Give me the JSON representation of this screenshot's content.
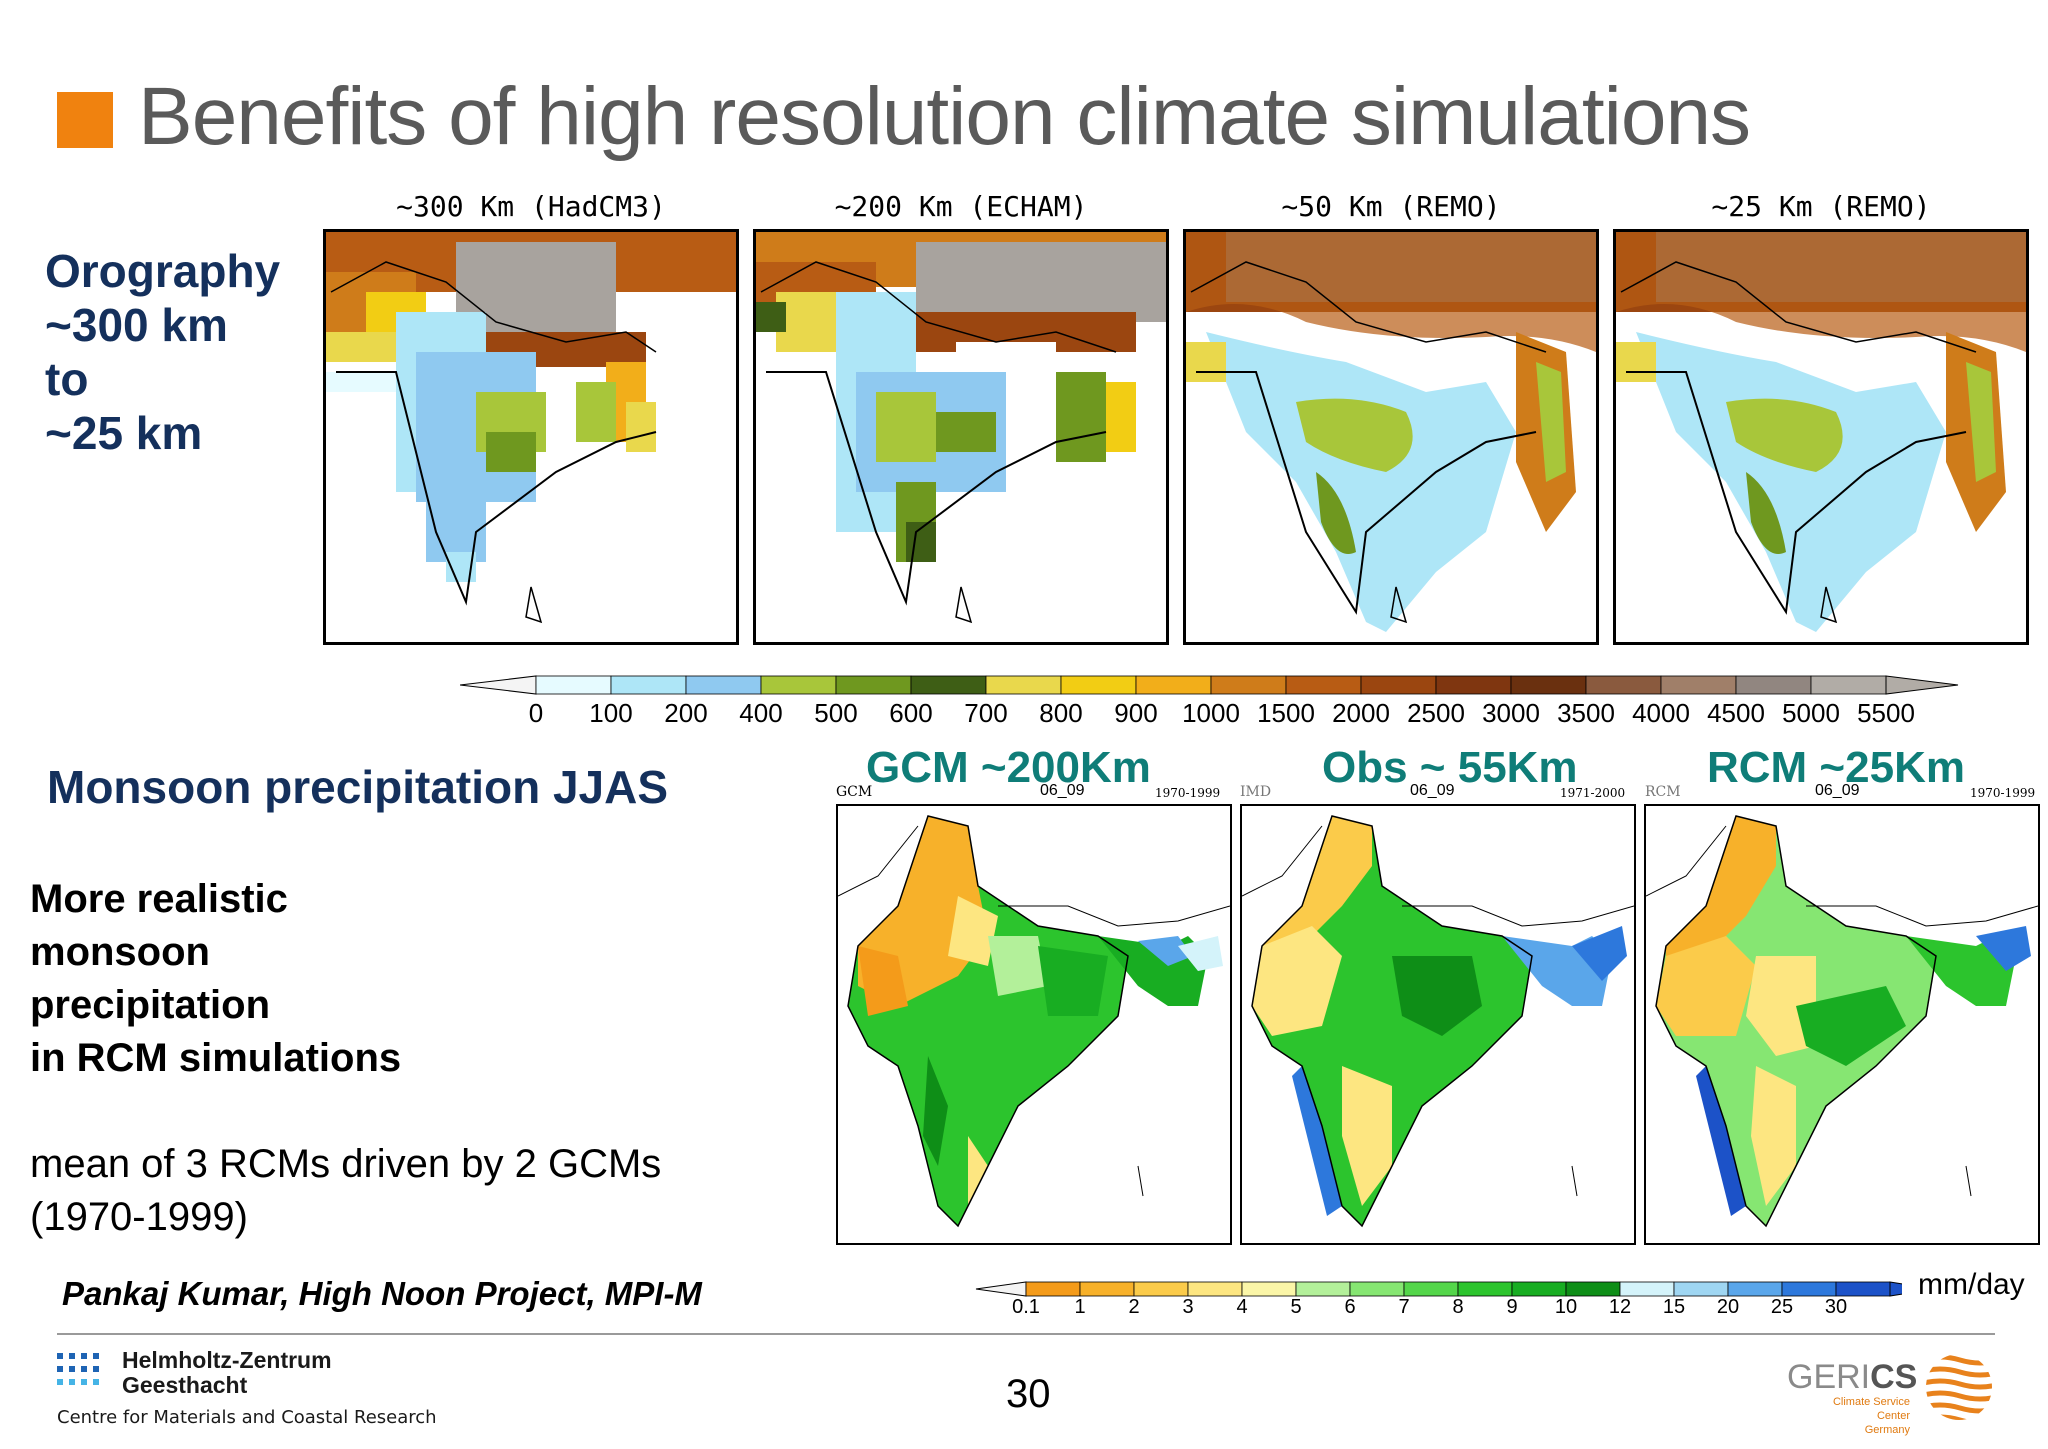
{
  "slide": {
    "title": "Benefits of high resolution climate simulations",
    "page_number": "30",
    "accent_color": "#f0820f"
  },
  "orography": {
    "heading_lines": [
      "Orography",
      "~300 km",
      "to",
      "~25 km"
    ],
    "panels": [
      {
        "label": "~300 Km (HadCM3)"
      },
      {
        "label": "~200 Km (ECHAM)"
      },
      {
        "label": "~50 Km (REMO)"
      },
      {
        "label": "~25 Km (REMO)"
      }
    ],
    "colorbar_ticks": [
      "0",
      "100",
      "200",
      "400",
      "500",
      "600",
      "700",
      "800",
      "900",
      "1000",
      "1500",
      "2000",
      "2500",
      "3000",
      "3500",
      "4000",
      "4500",
      "5000",
      "5500"
    ],
    "colorbar_colors": [
      "#e6fbff",
      "#aee6f7",
      "#8fc9f0",
      "#a8c63a",
      "#6f981f",
      "#3e5e15",
      "#e9d84c",
      "#f2cd14",
      "#f2ae1a",
      "#cf7c1a",
      "#b85c14",
      "#9b4610",
      "#7f3610",
      "#6a300f",
      "#8a5a3e",
      "#a07f69",
      "#918680",
      "#b1aca6"
    ]
  },
  "monsoon": {
    "heading": "Monsoon precipitation JJAS",
    "bold_lines": [
      "More realistic",
      "monsoon",
      "precipitation",
      "in RCM simulations"
    ],
    "note_lines": [
      "mean of 3 RCMs driven by 2 GCMs",
      "(1970-1999)"
    ],
    "credit": "Pankaj Kumar, High Noon Project, MPI-M",
    "unit": "mm/day",
    "panels": [
      {
        "title": "GCM ~200Km",
        "tag_left": "GCM",
        "tag_mid": "06_09",
        "tag_right": "1970-1999"
      },
      {
        "title": "Obs ~ 55Km",
        "tag_left": "IMD",
        "tag_mid": "06_09",
        "tag_right": "1971-2000"
      },
      {
        "title": "RCM ~25Km",
        "tag_left": "RCM",
        "tag_mid": "06_09",
        "tag_right": "1970-1999"
      }
    ],
    "colorbar_ticks": [
      "0.1",
      "1",
      "2",
      "3",
      "4",
      "5",
      "6",
      "7",
      "8",
      "9",
      "10",
      "12",
      "15",
      "20",
      "25",
      "30"
    ],
    "colorbar_colors": [
      "#f49b1a",
      "#f7b12a",
      "#fbcb4a",
      "#fde681",
      "#fbf6a8",
      "#b3f09a",
      "#86e672",
      "#54d64a",
      "#2cc42d",
      "#18ad22",
      "#0e8e17",
      "#d4f3fa",
      "#9fd6f2",
      "#5aa6ea",
      "#2d78dc",
      "#1c52c8"
    ]
  },
  "footer": {
    "left_logo_line1": "Helmholtz-Zentrum",
    "left_logo_line2": "Geesthacht",
    "left_logo_line3": "Centre for Materials and Coastal Research",
    "right_logo_prefix": "GERI",
    "right_logo_suffix": "CS",
    "right_logo_sub1": "Climate Service Center",
    "right_logo_sub2": "Germany"
  }
}
